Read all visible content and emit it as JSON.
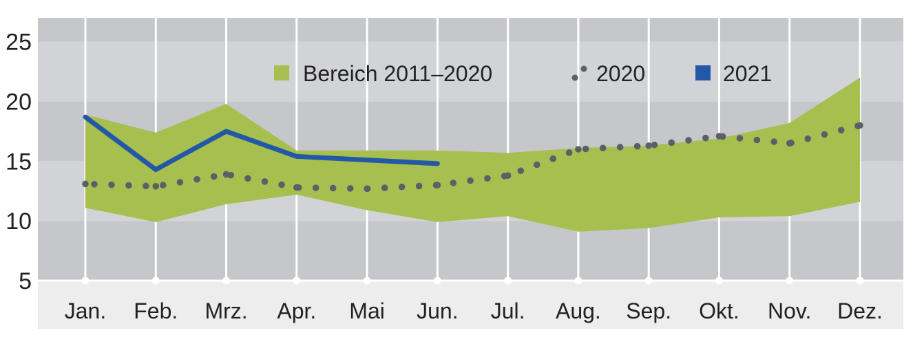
{
  "chart_data": {
    "type": "line",
    "categories": [
      "Jan.",
      "Feb.",
      "Mrz.",
      "Apr.",
      "Mai",
      "Jun.",
      "Jul.",
      "Aug.",
      "Sep.",
      "Okt.",
      "Nov.",
      "Dez."
    ],
    "range_band": {
      "name": "Bereich 2011–2020",
      "upper": [
        18.9,
        17.4,
        19.8,
        15.9,
        15.9,
        15.9,
        15.7,
        16.1,
        16.3,
        16.9,
        18.2,
        22.0
      ],
      "lower": [
        11.1,
        9.9,
        11.4,
        12.2,
        10.9,
        9.9,
        10.4,
        9.1,
        9.4,
        10.3,
        10.4,
        11.6
      ]
    },
    "series": [
      {
        "name": "2020",
        "values": [
          13.1,
          12.9,
          13.9,
          12.8,
          12.7,
          13.0,
          13.8,
          16.0,
          16.3,
          17.1,
          16.5,
          18.0
        ]
      },
      {
        "name": "2021",
        "values": [
          18.7,
          14.3,
          17.5,
          15.4,
          15.1,
          14.8,
          null,
          null,
          null,
          null,
          null,
          null
        ]
      }
    ],
    "y_ticks": [
      "5",
      "10",
      "15",
      "20",
      "25"
    ],
    "ylim": [
      5,
      27
    ],
    "grid": true,
    "legend_position": "top-center",
    "colors": {
      "band": "#a7bf4f",
      "series_2020": "#5a6068",
      "series_2021": "#2358a7",
      "stripe_dark": "#c6c7cb",
      "stripe_light": "#d2d3d6",
      "x_axis_bg": "#ededee",
      "gridline": "#ffffff"
    }
  }
}
